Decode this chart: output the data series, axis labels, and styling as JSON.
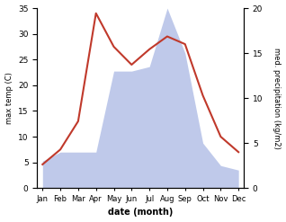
{
  "months": [
    "Jan",
    "Feb",
    "Mar",
    "Apr",
    "May",
    "Jun",
    "Jul",
    "Aug",
    "Sep",
    "Oct",
    "Nov",
    "Dec"
  ],
  "temperature": [
    4.6,
    7.5,
    13.0,
    34.0,
    27.5,
    24.0,
    27.0,
    29.5,
    28.0,
    18.0,
    10.0,
    7.0
  ],
  "precipitation": [
    3.0,
    4.0,
    4.0,
    4.0,
    13.0,
    13.0,
    13.5,
    20.0,
    15.0,
    5.0,
    2.5,
    2.0
  ],
  "temp_color": "#c0392b",
  "precip_fill_color": "#b8c4e8",
  "ylabel_left": "max temp (C)",
  "ylabel_right": "med. precipitation (kg/m2)",
  "xlabel": "date (month)",
  "ylim_left": [
    0,
    35
  ],
  "ylim_right": [
    0,
    20
  ],
  "yticks_left": [
    0,
    5,
    10,
    15,
    20,
    25,
    30,
    35
  ],
  "yticks_right": [
    0,
    5,
    10,
    15,
    20
  ],
  "figsize": [
    3.18,
    2.47
  ],
  "dpi": 100
}
